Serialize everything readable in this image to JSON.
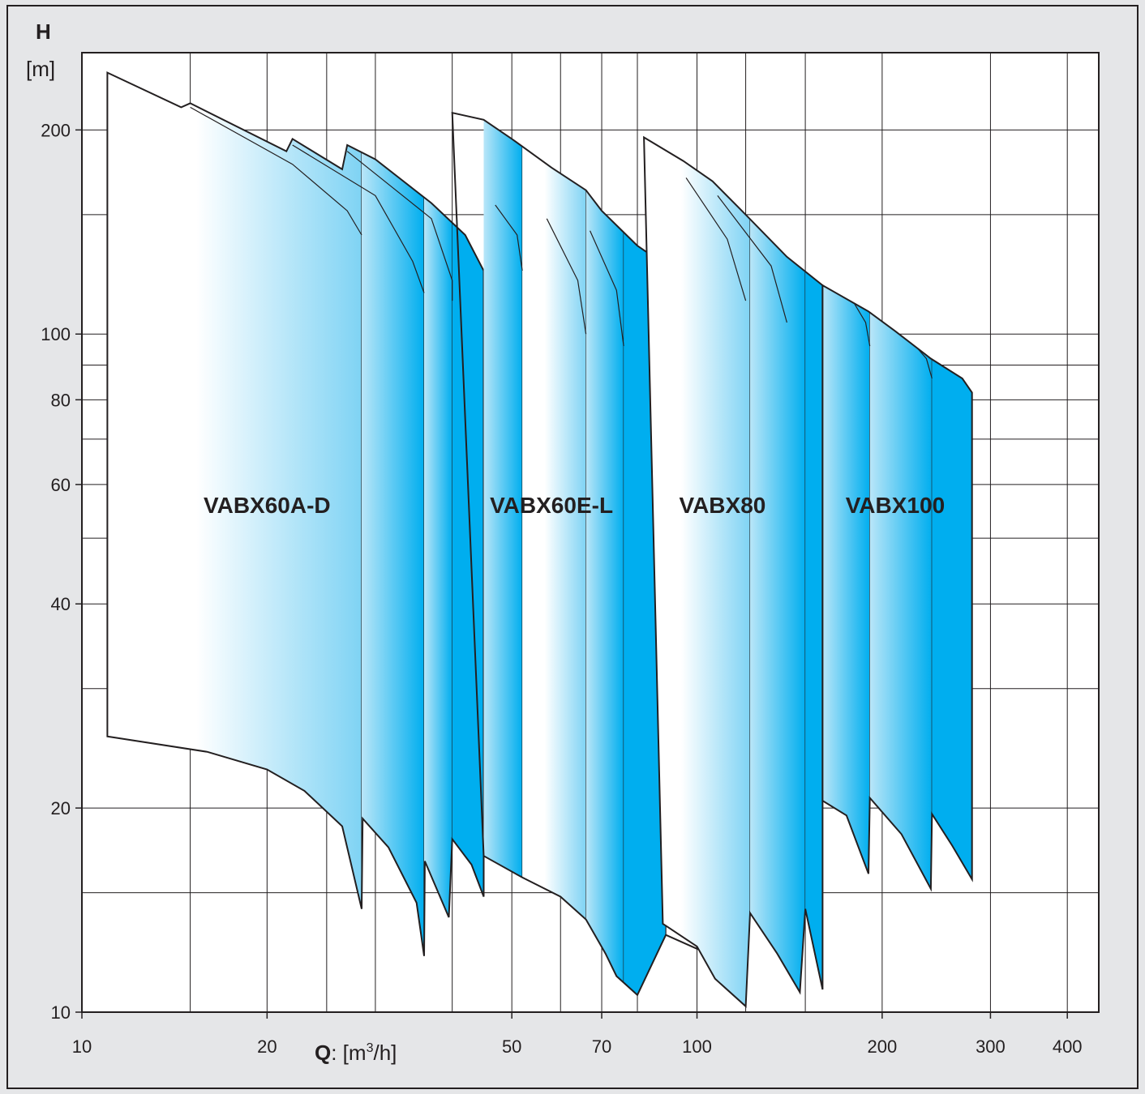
{
  "chart_data": {
    "type": "area",
    "title": "",
    "y_axis": {
      "symbol": "H",
      "unit": "[m]",
      "scale": "log",
      "range": [
        10,
        260
      ],
      "ticks": [
        200,
        100,
        80,
        60,
        40,
        20,
        10
      ],
      "tick_labels": [
        "200",
        "100",
        "80",
        "60",
        "40",
        "20",
        "10"
      ],
      "minor_gridlines": [
        150,
        90,
        70,
        50,
        30,
        15
      ]
    },
    "x_axis": {
      "symbol": "Q",
      "unit_pre": ": [m",
      "unit_sup": "3",
      "unit_post": "/h]",
      "scale": "log",
      "range": [
        10,
        450
      ],
      "ticks": [
        10,
        20,
        50,
        70,
        100,
        200,
        300,
        400
      ],
      "tick_labels": [
        "10",
        "20",
        "50",
        "70",
        "100",
        "200",
        "300",
        "400"
      ],
      "gridlines": [
        15,
        20,
        25,
        30,
        40,
        50,
        60,
        70,
        80,
        100,
        120,
        150,
        200,
        300,
        400
      ]
    },
    "grid": true,
    "colors": {
      "light": "#ffffff",
      "mid": "#7fd3f4",
      "dark": "#00aeef",
      "outline": "#231f20",
      "background": "#e5e6e8"
    },
    "series": [
      {
        "name": "VABX60A-D",
        "label_at": {
          "q": 20,
          "h": 56
        },
        "top": [
          [
            11,
            243
          ],
          [
            14.5,
            216
          ],
          [
            15,
            219
          ],
          [
            21.5,
            186
          ],
          [
            22,
            194
          ],
          [
            26.5,
            175
          ],
          [
            27,
            190
          ],
          [
            30,
            181
          ],
          [
            37,
            156
          ],
          [
            42,
            140
          ],
          [
            45,
            124
          ]
        ],
        "bottom": [
          [
            11,
            25.5
          ],
          [
            16,
            24.2
          ],
          [
            20,
            22.8
          ],
          [
            23,
            21.2
          ],
          [
            26.5,
            18.8
          ],
          [
            28.5,
            14.2
          ],
          [
            28.6,
            19.3
          ],
          [
            31.5,
            17.5
          ],
          [
            35,
            14.5
          ],
          [
            36,
            12.1
          ],
          [
            36.1,
            16.7
          ],
          [
            39.5,
            13.8
          ],
          [
            40,
            18
          ],
          [
            43,
            16.5
          ],
          [
            45,
            14.8
          ]
        ],
        "right_edge": 45,
        "bands": [
          {
            "q_start": 11,
            "q_end": 28.5,
            "style": "gradient"
          },
          {
            "q_start": 28.5,
            "q_end": 36,
            "style": "mid"
          },
          {
            "q_start": 36,
            "q_end": 40,
            "style": "mid"
          },
          {
            "q_start": 40,
            "q_end": 45,
            "style": "dark"
          }
        ],
        "divider_curves": [
          [
            [
              15,
              216
            ],
            [
              22,
              178
            ],
            [
              27,
              152
            ],
            [
              28.5,
              140
            ]
          ],
          [
            [
              22,
              190
            ],
            [
              30,
              160
            ],
            [
              34.5,
              128
            ],
            [
              36,
              115
            ]
          ],
          [
            [
              27,
              186
            ],
            [
              37,
              148
            ],
            [
              40,
              120
            ],
            [
              40,
              112
            ]
          ]
        ]
      },
      {
        "name": "VABX60E-L",
        "label_at": {
          "q": 58,
          "h": 56
        },
        "top": [
          [
            40,
            212
          ],
          [
            45,
            207
          ],
          [
            50,
            194
          ],
          [
            58,
            176
          ],
          [
            66,
            163
          ],
          [
            70,
            152
          ],
          [
            80,
            135
          ],
          [
            85,
            130
          ],
          [
            89,
            120
          ],
          [
            100,
            111
          ]
        ],
        "bottom": [
          [
            45,
            17
          ],
          [
            52,
            15.8
          ],
          [
            60,
            14.8
          ],
          [
            66,
            13.7
          ],
          [
            71,
            12.2
          ],
          [
            74,
            11.3
          ],
          [
            80,
            10.6
          ],
          [
            89,
            13
          ],
          [
            100,
            12.4
          ]
        ],
        "right_edge": 89,
        "bands": [
          {
            "q_start": 45,
            "q_end": 52,
            "style": "mid"
          },
          {
            "q_start": 52,
            "q_end": 66,
            "style": "gradient"
          },
          {
            "q_start": 66,
            "q_end": 76,
            "style": "mid"
          },
          {
            "q_start": 76,
            "q_end": 89,
            "style": "dark"
          }
        ],
        "divider_curves": [
          [
            [
              47,
              155
            ],
            [
              51,
              140
            ],
            [
              52,
              124
            ]
          ],
          [
            [
              57,
              148
            ],
            [
              64,
              120
            ],
            [
              66,
              100
            ]
          ],
          [
            [
              67,
              142
            ],
            [
              74,
              116
            ],
            [
              76,
              96
            ]
          ]
        ]
      },
      {
        "name": "VABX80",
        "label_at": {
          "q": 110,
          "h": 56
        },
        "top": [
          [
            82,
            195
          ],
          [
            95,
            180
          ],
          [
            106,
            168
          ],
          [
            120,
            150
          ],
          [
            140,
            130
          ],
          [
            160,
            118
          ]
        ],
        "bottom": [
          [
            88,
            13.5
          ],
          [
            100,
            12.5
          ],
          [
            107,
            11.2
          ],
          [
            120,
            10.2
          ],
          [
            122,
            14
          ],
          [
            135,
            12.2
          ],
          [
            147,
            10.7
          ],
          [
            150,
            14.2
          ],
          [
            158,
            11.4
          ],
          [
            160,
            10.8
          ]
        ],
        "right_edge": 160,
        "bands": [
          {
            "q_start": 82,
            "q_end": 122,
            "style": "gradient"
          },
          {
            "q_start": 122,
            "q_end": 150,
            "style": "mid"
          },
          {
            "q_start": 150,
            "q_end": 160,
            "style": "dark"
          }
        ],
        "divider_curves": [
          [
            [
              96,
              170
            ],
            [
              112,
              138
            ],
            [
              120,
              112
            ]
          ],
          [
            [
              108,
              160
            ],
            [
              132,
              126
            ],
            [
              140,
              104
            ]
          ]
        ]
      },
      {
        "name": "VABX100",
        "label_at": {
          "q": 210,
          "h": 56
        },
        "top": [
          [
            160,
            118
          ],
          [
            190,
            108
          ],
          [
            210,
            101
          ],
          [
            240,
            92
          ],
          [
            270,
            86
          ],
          [
            280,
            82
          ]
        ],
        "bottom": [
          [
            160,
            20.5
          ],
          [
            175,
            19.5
          ],
          [
            190,
            16
          ],
          [
            191,
            20.7
          ],
          [
            215,
            18.3
          ],
          [
            240,
            15.2
          ],
          [
            241,
            19.6
          ],
          [
            260,
            17.6
          ],
          [
            280,
            15.7
          ]
        ],
        "right_edge": 280,
        "bands": [
          {
            "q_start": 160,
            "q_end": 191,
            "style": "mid"
          },
          {
            "q_start": 191,
            "q_end": 241,
            "style": "mid"
          },
          {
            "q_start": 241,
            "q_end": 280,
            "style": "dark"
          }
        ],
        "divider_curves": [
          [
            [
              175,
              116
            ],
            [
              188,
              104
            ],
            [
              191,
              96
            ]
          ],
          [
            [
              210,
              104
            ],
            [
              236,
              92
            ],
            [
              241,
              86
            ]
          ]
        ]
      }
    ]
  }
}
